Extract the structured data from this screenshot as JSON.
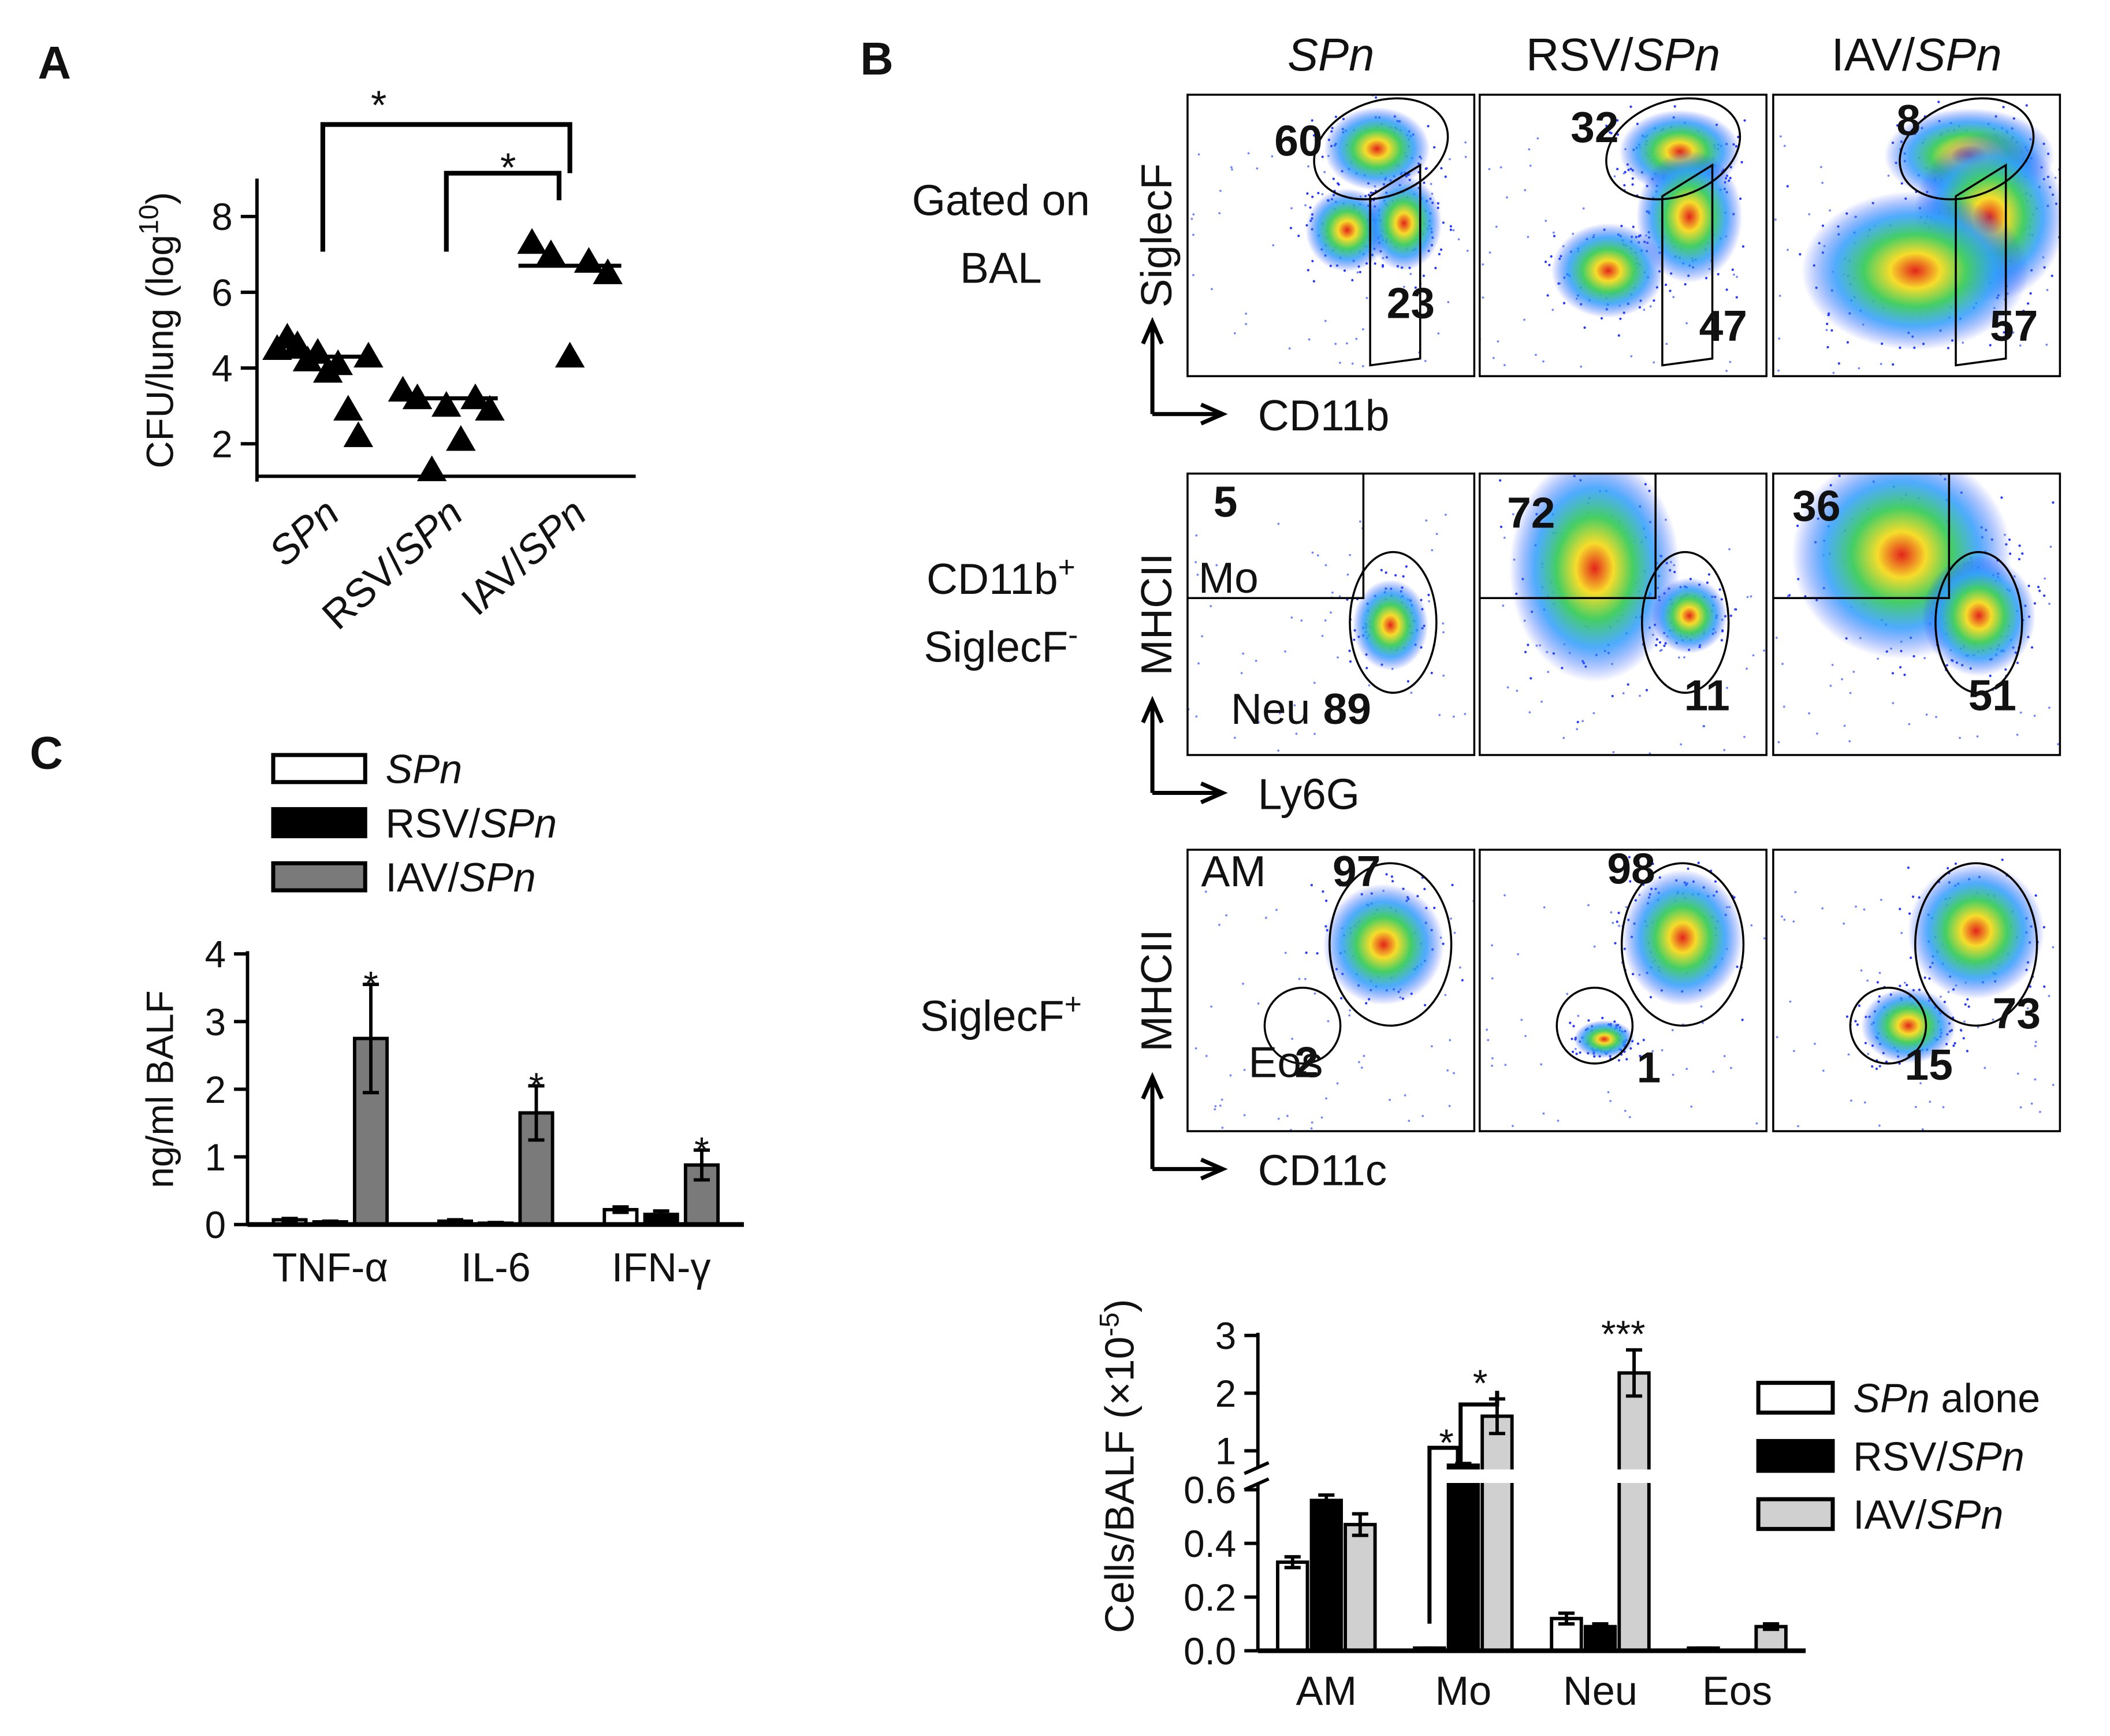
{
  "panels": [
    "A",
    "B",
    "C"
  ],
  "chart_data": [
    {
      "type": "scatter",
      "ylabel_parts": [
        "CFU/lung (log",
        "10",
        ")"
      ],
      "categories": [
        "SPn",
        "RSV/SPn",
        "IAV/SPn"
      ],
      "italic_term": "SPn",
      "marker": "triangle",
      "color": "#000000",
      "values": [
        [
          4.5,
          4.8,
          4.6,
          4.2,
          4.4,
          3.9,
          4.1,
          2.9,
          2.2,
          4.3
        ],
        [
          3.4,
          3.2,
          1.3,
          3.0,
          2.1,
          3.2,
          2.9
        ],
        [
          7.3,
          7.0,
          4.3,
          6.8,
          6.5
        ]
      ],
      "medians": [
        4.3,
        3.2,
        6.7
      ],
      "ylim": [
        1,
        9
      ],
      "yticks": [
        2,
        4,
        6,
        8
      ],
      "annotations": [
        "*",
        "*"
      ]
    },
    {
      "type": "bar",
      "ylabel": "ng/ml BALF",
      "categories": [
        "TNF-α",
        "IL-6",
        "IFN-γ"
      ],
      "italic_term": "SPn",
      "series": [
        {
          "name": "SPn",
          "color": "#ffffff",
          "values": [
            0.07,
            0.05,
            0.22
          ],
          "errors": [
            0.02,
            0.02,
            0.04
          ]
        },
        {
          "name": "RSV/SPn",
          "color": "#000000",
          "values": [
            0.04,
            0.02,
            0.15
          ],
          "errors": [
            0.01,
            0.01,
            0.05
          ]
        },
        {
          "name": "IAV/SPn",
          "color": "#7a7a7a",
          "values": [
            2.75,
            1.65,
            0.88
          ],
          "errors": [
            0.8,
            0.4,
            0.22
          ]
        }
      ],
      "ylim": [
        0,
        4
      ],
      "yticks": [
        0,
        1,
        2,
        3,
        4
      ],
      "annotations": [
        "*",
        "*",
        "*"
      ]
    },
    {
      "type": "bar",
      "ylabel_parts": [
        "Cells/BALF (×10",
        "-5",
        ")"
      ],
      "categories": [
        "AM",
        "Mo",
        "Neu",
        "Eos"
      ],
      "italic_term": "SPn",
      "series": [
        {
          "name": "SPn alone",
          "color": "#ffffff",
          "values": [
            0.33,
            0.01,
            0.12,
            0.01
          ],
          "errors": [
            0.02,
            0.0,
            0.02,
            0.0
          ]
        },
        {
          "name": "RSV/SPn",
          "color": "#000000",
          "values": [
            0.56,
            0.75,
            0.09,
            0.0
          ],
          "errors": [
            0.02,
            0.03,
            0.01,
            0.0
          ]
        },
        {
          "name": "IAV/SPn",
          "color": "#d0d0d0",
          "values": [
            0.47,
            1.6,
            2.35,
            0.09
          ],
          "errors": [
            0.04,
            0.3,
            0.4,
            0.01
          ]
        }
      ],
      "ylim": [
        0,
        3
      ],
      "ybreak": [
        0.62,
        0.7
      ],
      "yticks": [
        {
          "value": 0,
          "label": "0.0"
        },
        0.2,
        0.4,
        0.6,
        1,
        2,
        3
      ],
      "annotations": [
        "*",
        "*",
        "***"
      ]
    }
  ],
  "flow": {
    "italic_term": "SPn",
    "columns": [
      "SPn",
      "RSV/SPn",
      "IAV/SPn"
    ],
    "rows": [
      {
        "label": [
          [
            "Gated on"
          ],
          [
            "BAL"
          ]
        ],
        "y_axis": "SiglecF",
        "x_axis": "CD11b",
        "gates": [
          [
            60,
            23
          ],
          [
            32,
            47
          ],
          [
            8,
            57
          ]
        ]
      },
      {
        "label": [
          [
            "CD11b",
            "+"
          ],
          [
            "SiglecF",
            "-"
          ]
        ],
        "y_axis": "MHCII",
        "x_axis": "Ly6G",
        "gates": [
          [
            5,
            89
          ],
          [
            72,
            11
          ],
          [
            36,
            51
          ]
        ],
        "gate_names": [
          "Mo",
          "Neu"
        ]
      },
      {
        "label": [
          [
            "SiglecF",
            "+"
          ]
        ],
        "y_axis": "MHCII",
        "x_axis": "CD11c",
        "gates": [
          [
            97,
            2
          ],
          [
            98,
            1
          ],
          [
            73,
            15
          ]
        ],
        "gate_names": [
          "AM",
          "Eos"
        ]
      }
    ]
  }
}
